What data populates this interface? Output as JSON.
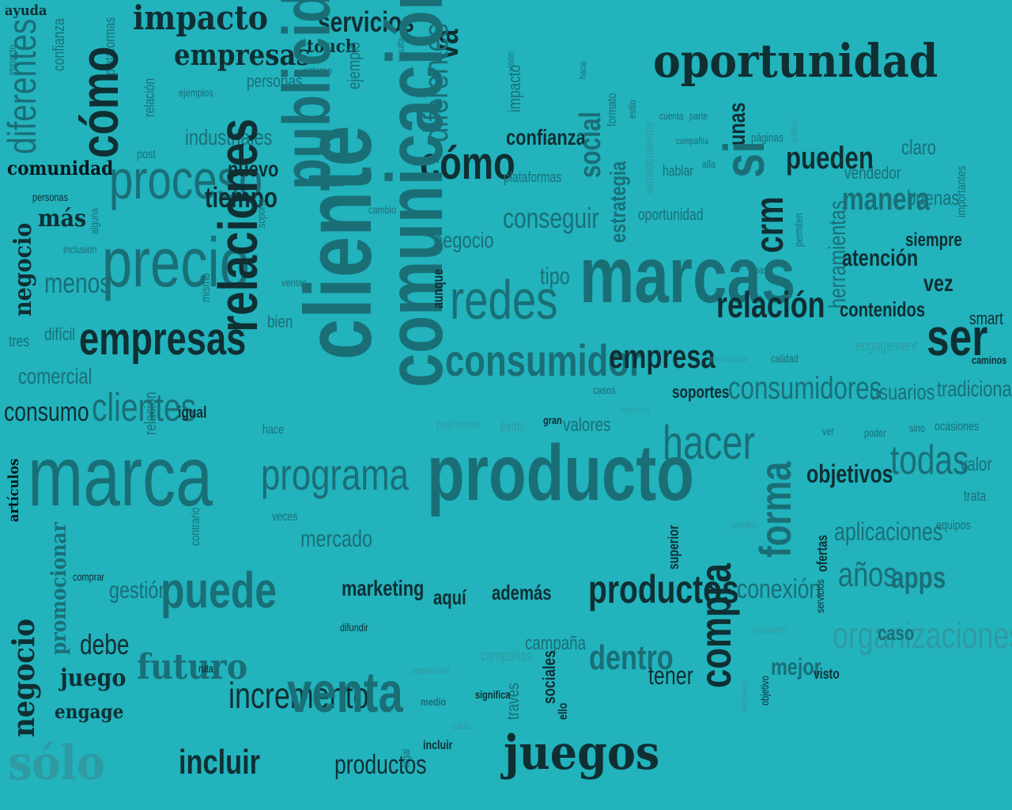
{
  "colors": {
    "background": "#22b3bd",
    "dark": "#0f2f33",
    "mid": "#1a6f77",
    "faint": "#2f9aa2",
    "black": "#06181a"
  },
  "words": [
    {
      "text": "ayuda",
      "tone": "dark"
    },
    {
      "text": "impacto",
      "tone": "mid"
    },
    {
      "text": "confianza",
      "tone": "mid"
    },
    {
      "text": "plataformas",
      "tone": "mid"
    },
    {
      "text": "impacto",
      "tone": "dark"
    },
    {
      "text": "servicios",
      "tone": "dark"
    },
    {
      "text": "va",
      "tone": "dark"
    },
    {
      "text": "resulta",
      "tone": "mid"
    },
    {
      "text": "oportunidad",
      "tone": "dark"
    },
    {
      "text": "empresas",
      "tone": "dark"
    },
    {
      "text": "touch",
      "tone": "dark"
    },
    {
      "text": "relación",
      "tone": "mid"
    },
    {
      "text": "entorno",
      "tone": "mid"
    },
    {
      "text": "ejemplo",
      "tone": "mid"
    },
    {
      "text": "diferentes",
      "tone": "mid"
    },
    {
      "text": "cómo",
      "tone": "dark"
    },
    {
      "text": "ejemplos",
      "tone": "mid"
    },
    {
      "text": "personas",
      "tone": "mid"
    },
    {
      "text": "visión",
      "tone": "mid"
    },
    {
      "text": "impacto",
      "tone": "mid"
    },
    {
      "text": "hacia",
      "tone": "mid"
    },
    {
      "text": "formato",
      "tone": "mid"
    },
    {
      "text": "estilo",
      "tone": "mid"
    },
    {
      "text": "verdaderamente",
      "tone": "faint"
    },
    {
      "text": "cuenta",
      "tone": "mid"
    },
    {
      "text": "parte",
      "tone": "mid"
    },
    {
      "text": "compañía",
      "tone": "mid"
    },
    {
      "text": "público",
      "tone": "faint"
    },
    {
      "text": "diferentes",
      "tone": "mid"
    },
    {
      "text": "publicidad",
      "tone": "mid"
    },
    {
      "text": "post",
      "tone": "mid"
    },
    {
      "text": "industriales",
      "tone": "mid"
    },
    {
      "text": "confianza",
      "tone": "dark"
    },
    {
      "text": "unas",
      "tone": "dark"
    },
    {
      "text": "páginas",
      "tone": "mid"
    },
    {
      "text": "claro",
      "tone": "mid"
    },
    {
      "text": "comunidad",
      "tone": "black"
    },
    {
      "text": "proceso",
      "tone": "mid"
    },
    {
      "text": "nuevo",
      "tone": "dark"
    },
    {
      "text": "cómo",
      "tone": "dark"
    },
    {
      "text": "plataformas",
      "tone": "mid"
    },
    {
      "text": "social",
      "tone": "mid"
    },
    {
      "text": "estrategia",
      "tone": "mid"
    },
    {
      "text": "hablar",
      "tone": "mid"
    },
    {
      "text": "alla",
      "tone": "mid"
    },
    {
      "text": "si",
      "tone": "mid"
    },
    {
      "text": "pueden",
      "tone": "dark"
    },
    {
      "text": "vendedor",
      "tone": "mid"
    },
    {
      "text": "negocio",
      "tone": "dark"
    },
    {
      "text": "personas",
      "tone": "dark"
    },
    {
      "text": "alguna",
      "tone": "mid"
    },
    {
      "text": "tiempo",
      "tone": "dark"
    },
    {
      "text": "cambio",
      "tone": "mid"
    },
    {
      "text": "cliente",
      "tone": "mid"
    },
    {
      "text": "conseguir",
      "tone": "mid"
    },
    {
      "text": "oportunidad",
      "tone": "mid"
    },
    {
      "text": "crm",
      "tone": "dark"
    },
    {
      "text": "permiten",
      "tone": "mid"
    },
    {
      "text": "manera",
      "tone": "mid"
    },
    {
      "text": "buenas",
      "tone": "mid"
    },
    {
      "text": "más",
      "tone": "dark"
    },
    {
      "text": "precio",
      "tone": "mid"
    },
    {
      "text": "soporte",
      "tone": "mid"
    },
    {
      "text": "negocio",
      "tone": "mid"
    },
    {
      "text": "marcas",
      "tone": "mid"
    },
    {
      "text": "herramientas",
      "tone": "mid"
    },
    {
      "text": "atención",
      "tone": "dark"
    },
    {
      "text": "siempre",
      "tone": "dark"
    },
    {
      "text": "importantes",
      "tone": "mid"
    },
    {
      "text": "inclusión",
      "tone": "mid"
    },
    {
      "text": "mismo",
      "tone": "mid"
    },
    {
      "text": "relaciones",
      "tone": "dark"
    },
    {
      "text": "comunicación",
      "tone": "mid"
    },
    {
      "text": "redes",
      "tone": "mid"
    },
    {
      "text": "tipo",
      "tone": "mid"
    },
    {
      "text": "base",
      "tone": "mid"
    },
    {
      "text": "relación",
      "tone": "dark"
    },
    {
      "text": "vez",
      "tone": "dark"
    },
    {
      "text": "menos",
      "tone": "mid"
    },
    {
      "text": "ventas",
      "tone": "mid"
    },
    {
      "text": "bien",
      "tone": "mid"
    },
    {
      "text": "aunque",
      "tone": "dark"
    },
    {
      "text": "contenidos",
      "tone": "dark"
    },
    {
      "text": "smart",
      "tone": "dark"
    },
    {
      "text": "tres",
      "tone": "mid"
    },
    {
      "text": "difícil",
      "tone": "mid"
    },
    {
      "text": "empresas",
      "tone": "dark"
    },
    {
      "text": "consumidor",
      "tone": "mid"
    },
    {
      "text": "empresa",
      "tone": "dark"
    },
    {
      "text": "importancia",
      "tone": "faint"
    },
    {
      "text": "calidad",
      "tone": "mid"
    },
    {
      "text": "engagement",
      "tone": "faint"
    },
    {
      "text": "ser",
      "tone": "dark"
    },
    {
      "text": "caminos",
      "tone": "dark"
    },
    {
      "text": "comercial",
      "tone": "mid"
    },
    {
      "text": "relación",
      "tone": "mid"
    },
    {
      "text": "casos",
      "tone": "mid"
    },
    {
      "text": "soportes",
      "tone": "dark"
    },
    {
      "text": "consumidores",
      "tone": "mid"
    },
    {
      "text": "usuarios",
      "tone": "mid"
    },
    {
      "text": "tradicional",
      "tone": "mid"
    },
    {
      "text": "consumo",
      "tone": "dark"
    },
    {
      "text": "clientes",
      "tone": "mid"
    },
    {
      "text": "igual",
      "tone": "dark"
    },
    {
      "text": "hace",
      "tone": "mid"
    },
    {
      "text": "realmente",
      "tone": "faint"
    },
    {
      "text": "éxito",
      "tone": "faint"
    },
    {
      "text": "gran",
      "tone": "dark"
    },
    {
      "text": "valores",
      "tone": "mid"
    },
    {
      "text": "negocios",
      "tone": "faint"
    },
    {
      "text": "hacer",
      "tone": "mid"
    },
    {
      "text": "ver",
      "tone": "mid"
    },
    {
      "text": "poder",
      "tone": "mid"
    },
    {
      "text": "sino",
      "tone": "mid"
    },
    {
      "text": "ocasiones",
      "tone": "mid"
    },
    {
      "text": "artículos",
      "tone": "black"
    },
    {
      "text": "marca",
      "tone": "mid"
    },
    {
      "text": "programa",
      "tone": "mid"
    },
    {
      "text": "producto",
      "tone": "mid"
    },
    {
      "text": "forma",
      "tone": "mid"
    },
    {
      "text": "objetivos",
      "tone": "dark"
    },
    {
      "text": "todas",
      "tone": "mid"
    },
    {
      "text": "valor",
      "tone": "mid"
    },
    {
      "text": "trata",
      "tone": "mid"
    },
    {
      "text": "contrario",
      "tone": "mid"
    },
    {
      "text": "veces",
      "tone": "mid"
    },
    {
      "text": "mercado",
      "tone": "mid"
    },
    {
      "text": "superior",
      "tone": "dark"
    },
    {
      "text": "suelen",
      "tone": "faint"
    },
    {
      "text": "ofertas",
      "tone": "dark"
    },
    {
      "text": "aplicaciones",
      "tone": "mid"
    },
    {
      "text": "equipos",
      "tone": "mid"
    },
    {
      "text": "negocio",
      "tone": "dark"
    },
    {
      "text": "promocionar",
      "tone": "mid"
    },
    {
      "text": "comprar",
      "tone": "dark"
    },
    {
      "text": "gestión",
      "tone": "mid"
    },
    {
      "text": "puede",
      "tone": "mid"
    },
    {
      "text": "marketing",
      "tone": "dark"
    },
    {
      "text": "aquí",
      "tone": "dark"
    },
    {
      "text": "además",
      "tone": "dark"
    },
    {
      "text": "productos",
      "tone": "dark"
    },
    {
      "text": "compra",
      "tone": "dark"
    },
    {
      "text": "conexión",
      "tone": "mid"
    },
    {
      "text": "servicios",
      "tone": "dark"
    },
    {
      "text": "años",
      "tone": "mid"
    },
    {
      "text": "apps",
      "tone": "mid"
    },
    {
      "text": "debe",
      "tone": "dark"
    },
    {
      "text": "futuro",
      "tone": "mid"
    },
    {
      "text": "difundir",
      "tone": "dark"
    },
    {
      "text": "través",
      "tone": "mid"
    },
    {
      "text": "campaña",
      "tone": "mid"
    },
    {
      "text": "importante",
      "tone": "mid"
    },
    {
      "text": "organizaciones",
      "tone": "faint"
    },
    {
      "text": "caso",
      "tone": "mid"
    },
    {
      "text": "juego",
      "tone": "dark"
    },
    {
      "text": "ruta",
      "tone": "black"
    },
    {
      "text": "empresarial",
      "tone": "mid"
    },
    {
      "text": "campañas",
      "tone": "faint"
    },
    {
      "text": "dentro",
      "tone": "mid"
    },
    {
      "text": "tener",
      "tone": "dark"
    },
    {
      "text": "mejor",
      "tone": "mid"
    },
    {
      "text": "visto",
      "tone": "dark"
    },
    {
      "text": "engage",
      "tone": "dark"
    },
    {
      "text": "incremento",
      "tone": "dark"
    },
    {
      "text": "venta",
      "tone": "mid"
    },
    {
      "text": "sociales",
      "tone": "dark"
    },
    {
      "text": "ello",
      "tone": "dark"
    },
    {
      "text": "objetivo",
      "tone": "dark"
    },
    {
      "text": "medio",
      "tone": "mid"
    },
    {
      "text": "significa",
      "tone": "dark"
    },
    {
      "text": "cada",
      "tone": "dark"
    },
    {
      "text": "momento",
      "tone": "faint"
    },
    {
      "text": "sólo",
      "tone": "faint"
    },
    {
      "text": "incluir",
      "tone": "dark"
    },
    {
      "text": "productos",
      "tone": "dark"
    },
    {
      "text": "legal",
      "tone": "mid"
    },
    {
      "text": "incluir",
      "tone": "dark"
    },
    {
      "text": "juegos",
      "tone": "dark"
    },
    {
      "text": "presentar",
      "tone": "dark"
    }
  ]
}
